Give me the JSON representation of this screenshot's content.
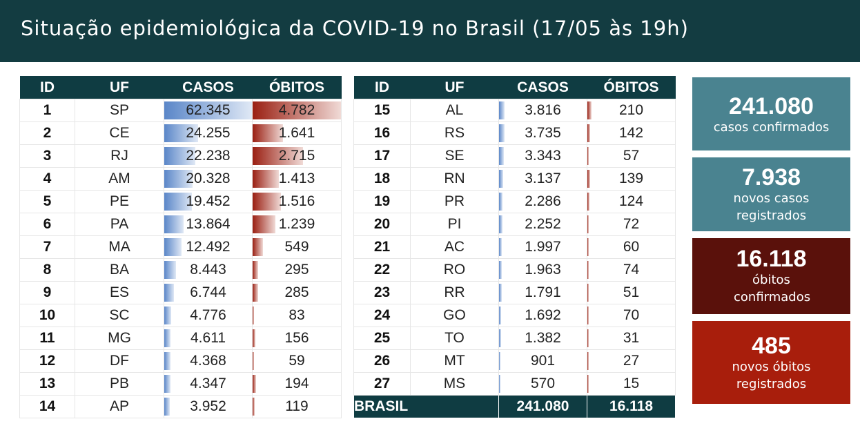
{
  "title": "Situação epidemiológica da COVID-19 no Brasil (17/05 às 19h)",
  "colors": {
    "header": "#0f3c42",
    "cases_bar": "#5a86c8",
    "deaths_bar": "#9a1f12",
    "card_teal": "#4a8390",
    "card_darkred": "#5a110b",
    "card_red": "#a81e0c"
  },
  "columns": [
    "ID",
    "UF",
    "CASOS",
    "ÓBITOS"
  ],
  "rows": [
    {
      "id": "1",
      "uf": "SP",
      "casos": "62.345",
      "obitos": "4.782"
    },
    {
      "id": "2",
      "uf": "CE",
      "casos": "24.255",
      "obitos": "1.641"
    },
    {
      "id": "3",
      "uf": "RJ",
      "casos": "22.238",
      "obitos": "2.715"
    },
    {
      "id": "4",
      "uf": "AM",
      "casos": "20.328",
      "obitos": "1.413"
    },
    {
      "id": "5",
      "uf": "PE",
      "casos": "19.452",
      "obitos": "1.516"
    },
    {
      "id": "6",
      "uf": "PA",
      "casos": "13.864",
      "obitos": "1.239"
    },
    {
      "id": "7",
      "uf": "MA",
      "casos": "12.492",
      "obitos": "549"
    },
    {
      "id": "8",
      "uf": "BA",
      "casos": "8.443",
      "obitos": "295"
    },
    {
      "id": "9",
      "uf": "ES",
      "casos": "6.744",
      "obitos": "285"
    },
    {
      "id": "10",
      "uf": "SC",
      "casos": "4.776",
      "obitos": "83"
    },
    {
      "id": "11",
      "uf": "MG",
      "casos": "4.611",
      "obitos": "156"
    },
    {
      "id": "12",
      "uf": "DF",
      "casos": "4.368",
      "obitos": "59"
    },
    {
      "id": "13",
      "uf": "PB",
      "casos": "4.347",
      "obitos": "194"
    },
    {
      "id": "14",
      "uf": "AP",
      "casos": "3.952",
      "obitos": "119"
    },
    {
      "id": "15",
      "uf": "AL",
      "casos": "3.816",
      "obitos": "210"
    },
    {
      "id": "16",
      "uf": "RS",
      "casos": "3.735",
      "obitos": "142"
    },
    {
      "id": "17",
      "uf": "SE",
      "casos": "3.343",
      "obitos": "57"
    },
    {
      "id": "18",
      "uf": "RN",
      "casos": "3.137",
      "obitos": "139"
    },
    {
      "id": "19",
      "uf": "PR",
      "casos": "2.286",
      "obitos": "124"
    },
    {
      "id": "20",
      "uf": "PI",
      "casos": "2.252",
      "obitos": "72"
    },
    {
      "id": "21",
      "uf": "AC",
      "casos": "1.997",
      "obitos": "60"
    },
    {
      "id": "22",
      "uf": "RO",
      "casos": "1.963",
      "obitos": "74"
    },
    {
      "id": "23",
      "uf": "RR",
      "casos": "1.791",
      "obitos": "51"
    },
    {
      "id": "24",
      "uf": "GO",
      "casos": "1.692",
      "obitos": "70"
    },
    {
      "id": "25",
      "uf": "TO",
      "casos": "1.382",
      "obitos": "31"
    },
    {
      "id": "26",
      "uf": "MT",
      "casos": "901",
      "obitos": "27"
    },
    {
      "id": "27",
      "uf": "MS",
      "casos": "570",
      "obitos": "15"
    }
  ],
  "total": {
    "label": "BRASIL",
    "casos": "241.080",
    "obitos": "16.118"
  },
  "cards": [
    {
      "number": "241.080",
      "label": "casos confirmados"
    },
    {
      "number": "7.938",
      "label": "novos casos registrados"
    },
    {
      "number": "16.118",
      "label": "óbitos confirmados"
    },
    {
      "number": "485",
      "label": "novos óbitos registrados"
    }
  ]
}
